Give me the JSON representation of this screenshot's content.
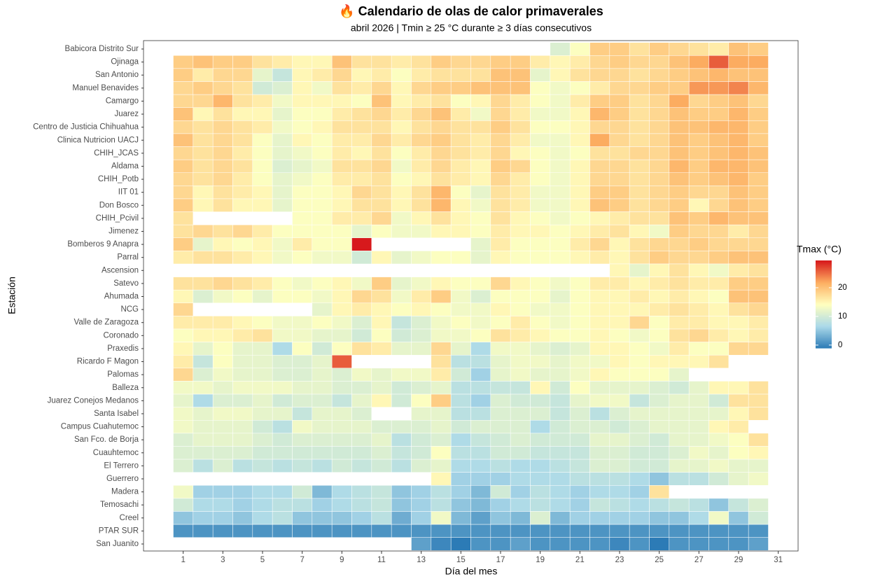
{
  "chart_data": {
    "type": "heatmap",
    "title": "🔥 Calendario de olas de calor primaverales",
    "subtitle": "abril 2026 | Tmin ≥ 25 °C durante ≥ 3 días consecutivos",
    "xlabel": "Día del mes",
    "ylabel": "Estación",
    "x": [
      1,
      2,
      3,
      4,
      5,
      6,
      7,
      8,
      9,
      10,
      11,
      12,
      13,
      14,
      15,
      16,
      17,
      18,
      19,
      20,
      21,
      22,
      23,
      24,
      25,
      26,
      27,
      28,
      29,
      30
    ],
    "xlim": [
      -1,
      32
    ],
    "xticks": [
      1,
      3,
      5,
      7,
      9,
      11,
      13,
      15,
      17,
      19,
      21,
      23,
      25,
      27,
      29,
      31
    ],
    "categories": [
      "Babicora Distrito Sur",
      "Ojinaga",
      "San Antonio",
      "Manuel Benavides",
      "Camargo",
      "Juarez",
      "Centro de Justicia Chihuahua",
      "Clinica Nutricion UACJ",
      "CHIH_JCAS",
      "Aldama",
      "CHIH_Potb",
      "IIT 01",
      "Don Bosco",
      "CHIH_Pcivil",
      "Jimenez",
      "Bomberos 9 Anapra",
      "Parral",
      "Ascension",
      "Satevo",
      "Ahumada",
      "NCG",
      "Valle de Zaragoza",
      "Coronado",
      "Praxedis",
      "Ricardo F Magon",
      "Palomas",
      "Balleza",
      "Juarez Conejos Medanos",
      "Santa Isabel",
      "Campus Cuahutemoc",
      "San Fco. de Borja",
      "Cuauhtemoc",
      "El Terrero",
      "Guerrero",
      "Madera",
      "Temosachi",
      "Creel",
      "PTAR SUR",
      "San Juanito"
    ],
    "values": [
      [
        null,
        null,
        null,
        null,
        null,
        null,
        null,
        null,
        null,
        null,
        null,
        null,
        null,
        null,
        null,
        null,
        null,
        null,
        null,
        11,
        14,
        19,
        19,
        17,
        19,
        18,
        17,
        16,
        20,
        19
      ],
      [
        19,
        20,
        19,
        19,
        17,
        16,
        15,
        15,
        20,
        17,
        17,
        16,
        17,
        19,
        18,
        18,
        19,
        19,
        16,
        15,
        16,
        18,
        19,
        18,
        18,
        20,
        22,
        26,
        22,
        22
      ],
      [
        19,
        16,
        18,
        18,
        12,
        9,
        15,
        16,
        18,
        15,
        16,
        14,
        16,
        17,
        17,
        17,
        20,
        20,
        12,
        15,
        17,
        18,
        18,
        17,
        18,
        19,
        20,
        21,
        20,
        20
      ],
      [
        18,
        19,
        18,
        17,
        10,
        11,
        15,
        13,
        17,
        16,
        18,
        15,
        18,
        19,
        19,
        20,
        20,
        20,
        14,
        13,
        14,
        16,
        18,
        18,
        19,
        19,
        23,
        23,
        24,
        21
      ],
      [
        18,
        18,
        21,
        17,
        16,
        13,
        15,
        15,
        15,
        14,
        20,
        15,
        16,
        17,
        14,
        15,
        18,
        16,
        14,
        13,
        16,
        19,
        19,
        17,
        18,
        22,
        18,
        19,
        20,
        18
      ],
      [
        20,
        15,
        17,
        15,
        15,
        12,
        14,
        14,
        16,
        17,
        18,
        16,
        18,
        20,
        16,
        13,
        18,
        16,
        13,
        13,
        15,
        21,
        19,
        17,
        18,
        20,
        19,
        19,
        21,
        19
      ],
      [
        18,
        17,
        18,
        17,
        16,
        13,
        14,
        15,
        17,
        17,
        17,
        15,
        17,
        18,
        17,
        17,
        19,
        17,
        14,
        14,
        15,
        18,
        18,
        17,
        18,
        20,
        20,
        21,
        21,
        19
      ],
      [
        20,
        17,
        18,
        17,
        14,
        12,
        15,
        14,
        16,
        16,
        18,
        16,
        18,
        19,
        17,
        16,
        18,
        16,
        13,
        13,
        15,
        22,
        18,
        17,
        18,
        20,
        19,
        20,
        21,
        19
      ],
      [
        18,
        17,
        18,
        16,
        14,
        12,
        13,
        14,
        16,
        15,
        17,
        14,
        16,
        18,
        17,
        16,
        18,
        15,
        14,
        13,
        14,
        17,
        17,
        18,
        18,
        20,
        19,
        20,
        21,
        20
      ],
      [
        19,
        17,
        18,
        17,
        14,
        11,
        12,
        13,
        17,
        17,
        18,
        13,
        16,
        18,
        16,
        15,
        19,
        18,
        14,
        13,
        15,
        18,
        18,
        17,
        18,
        21,
        19,
        21,
        21,
        20
      ],
      [
        18,
        17,
        18,
        16,
        14,
        12,
        13,
        14,
        16,
        16,
        17,
        14,
        15,
        17,
        16,
        15,
        18,
        16,
        14,
        13,
        15,
        18,
        18,
        17,
        18,
        20,
        19,
        20,
        21,
        19
      ],
      [
        18,
        15,
        17,
        16,
        15,
        12,
        14,
        14,
        15,
        18,
        17,
        15,
        17,
        21,
        14,
        12,
        17,
        16,
        13,
        13,
        15,
        19,
        19,
        17,
        18,
        19,
        18,
        18,
        20,
        19
      ],
      [
        19,
        15,
        17,
        15,
        15,
        12,
        14,
        14,
        15,
        17,
        17,
        15,
        17,
        21,
        15,
        13,
        17,
        16,
        13,
        13,
        15,
        20,
        19,
        17,
        18,
        19,
        15,
        18,
        20,
        19
      ],
      [
        17,
        null,
        null,
        null,
        null,
        null,
        14,
        14,
        16,
        16,
        18,
        13,
        15,
        17,
        15,
        14,
        17,
        15,
        14,
        13,
        14,
        15,
        16,
        17,
        17,
        20,
        19,
        21,
        20,
        20
      ],
      [
        17,
        18,
        17,
        18,
        16,
        14,
        14,
        14,
        14,
        12,
        14,
        13,
        13,
        15,
        15,
        14,
        16,
        15,
        15,
        14,
        15,
        16,
        17,
        15,
        13,
        19,
        18,
        18,
        16,
        18
      ],
      [
        19,
        12,
        15,
        14,
        15,
        13,
        16,
        14,
        14,
        29.5,
        null,
        null,
        null,
        null,
        null,
        12,
        16,
        14,
        14,
        14,
        16,
        18,
        15,
        17,
        18,
        18,
        19,
        18,
        18,
        18
      ],
      [
        16,
        17,
        17,
        16,
        15,
        13,
        14,
        13,
        13,
        10,
        15,
        12,
        13,
        14,
        14,
        12,
        15,
        14,
        14,
        14,
        15,
        16,
        15,
        17,
        19,
        18,
        18,
        19,
        20,
        20
      ],
      [
        null,
        null,
        null,
        null,
        null,
        null,
        null,
        null,
        null,
        null,
        null,
        null,
        null,
        null,
        null,
        null,
        null,
        null,
        null,
        null,
        null,
        null,
        15,
        12,
        15,
        17,
        15,
        13,
        16,
        17
      ],
      [
        17,
        17,
        18,
        17,
        16,
        14,
        13,
        14,
        15,
        13,
        19,
        12,
        13,
        15,
        14,
        14,
        18,
        15,
        14,
        13,
        14,
        16,
        16,
        15,
        16,
        17,
        16,
        16,
        19,
        19
      ],
      [
        15,
        11,
        13,
        14,
        12,
        14,
        14,
        13,
        15,
        18,
        17,
        13,
        16,
        19,
        13,
        11,
        14,
        14,
        14,
        12,
        14,
        15,
        15,
        16,
        15,
        16,
        15,
        14,
        20,
        20
      ],
      [
        18,
        null,
        null,
        null,
        null,
        null,
        null,
        12,
        15,
        16,
        15,
        14,
        15,
        14,
        13,
        13,
        15,
        14,
        13,
        13,
        14,
        15,
        15,
        15,
        16,
        17,
        16,
        15,
        17,
        18
      ],
      [
        16,
        16,
        16,
        15,
        14,
        13,
        13,
        14,
        13,
        11,
        15,
        9,
        11,
        13,
        14,
        13,
        14,
        16,
        14,
        13,
        14,
        15,
        15,
        18,
        14,
        16,
        16,
        15,
        15,
        16
      ],
      [
        14,
        15,
        15,
        16,
        17,
        13,
        13,
        12,
        12,
        10,
        14,
        10,
        11,
        13,
        13,
        14,
        17,
        16,
        15,
        14,
        14,
        15,
        14,
        13,
        14,
        17,
        18,
        16,
        15,
        16
      ],
      [
        15,
        12,
        14,
        12,
        12,
        7,
        14,
        10,
        14,
        17,
        16,
        12,
        12,
        18,
        12,
        7,
        13,
        13,
        12,
        11,
        12,
        15,
        15,
        14,
        13,
        16,
        14,
        14,
        18,
        18
      ],
      [
        16,
        9,
        14,
        12,
        12,
        11,
        11,
        12,
        26,
        null,
        null,
        null,
        null,
        17,
        8,
        8,
        12,
        13,
        13,
        12,
        13,
        13,
        15,
        14,
        15,
        15,
        15,
        17,
        null,
        null
      ],
      [
        18,
        11,
        13,
        12,
        12,
        11,
        11,
        12,
        11,
        13,
        12,
        13,
        13,
        16,
        10,
        6,
        12,
        13,
        12,
        12,
        13,
        15,
        14,
        14,
        14,
        12,
        null,
        null,
        null,
        null
      ],
      [
        13,
        13,
        12,
        13,
        13,
        13,
        12,
        12,
        11,
        11,
        12,
        10,
        11,
        12,
        8,
        8,
        9,
        9,
        15,
        10,
        14,
        12,
        12,
        12,
        11,
        10,
        12,
        15,
        15,
        17
      ],
      [
        12,
        7,
        11,
        11,
        12,
        10,
        11,
        11,
        9,
        12,
        15,
        10,
        14,
        19,
        8,
        6,
        11,
        10,
        10,
        9,
        12,
        13,
        13,
        9,
        11,
        12,
        12,
        10,
        17,
        17
      ],
      [
        13,
        12,
        13,
        13,
        12,
        12,
        9,
        12,
        12,
        11,
        null,
        null,
        12,
        12,
        8,
        8,
        11,
        11,
        11,
        9,
        11,
        8,
        11,
        12,
        12,
        12,
        12,
        12,
        15,
        17
      ],
      [
        13,
        12,
        12,
        12,
        10,
        8,
        13,
        12,
        12,
        12,
        11,
        11,
        11,
        12,
        10,
        11,
        11,
        11,
        7,
        10,
        11,
        11,
        10,
        11,
        12,
        12,
        12,
        15,
        16,
        null
      ],
      [
        11,
        12,
        12,
        12,
        11,
        10,
        11,
        11,
        11,
        11,
        12,
        8,
        10,
        11,
        7,
        9,
        10,
        11,
        10,
        10,
        10,
        12,
        12,
        11,
        10,
        12,
        12,
        13,
        14,
        17
      ],
      [
        11,
        11,
        11,
        11,
        10,
        10,
        10,
        10,
        10,
        10,
        11,
        9,
        10,
        14,
        8,
        8,
        10,
        10,
        9,
        9,
        9,
        11,
        11,
        10,
        10,
        11,
        13,
        12,
        14,
        15
      ],
      [
        11,
        8,
        11,
        8,
        9,
        8,
        9,
        8,
        10,
        9,
        10,
        8,
        11,
        12,
        7,
        7,
        8,
        7,
        7,
        8,
        9,
        11,
        11,
        10,
        10,
        12,
        12,
        13,
        12,
        12
      ],
      [
        null,
        null,
        null,
        null,
        null,
        null,
        null,
        null,
        null,
        null,
        null,
        null,
        null,
        15,
        6,
        6,
        6,
        7,
        7,
        7,
        8,
        8,
        8,
        7,
        5,
        8,
        8,
        10,
        12,
        13
      ],
      [
        13,
        6,
        6,
        6,
        7,
        7,
        10,
        4,
        7,
        8,
        9,
        5,
        6,
        8,
        6,
        4,
        10,
        6,
        8,
        7,
        6,
        7,
        7,
        6,
        17,
        null,
        null,
        null,
        null,
        null
      ],
      [
        10,
        7,
        7,
        6,
        7,
        8,
        8,
        6,
        7,
        8,
        9,
        5,
        6,
        8,
        5,
        4,
        6,
        7,
        8,
        7,
        6,
        9,
        8,
        7,
        8,
        9,
        8,
        5,
        9,
        11
      ],
      [
        5,
        6,
        6,
        5,
        7,
        8,
        5,
        5,
        5,
        6,
        8,
        3,
        6,
        13,
        4,
        2,
        5,
        4,
        11,
        4,
        6,
        6,
        6,
        6,
        5,
        5,
        7,
        13,
        5,
        10
      ],
      [
        1,
        1,
        1,
        1,
        1,
        1,
        1,
        1,
        1,
        1,
        1,
        1,
        1,
        1,
        1,
        1,
        1,
        1,
        1,
        1,
        1,
        1,
        1,
        1,
        1,
        1,
        1,
        1,
        1,
        1
      ],
      [
        null,
        null,
        null,
        null,
        null,
        null,
        null,
        null,
        null,
        null,
        null,
        null,
        2,
        0,
        -1,
        1,
        1,
        2,
        1,
        1,
        1,
        1,
        0,
        1,
        -1,
        1,
        1,
        1,
        1,
        2
      ]
    ],
    "colorscale": [
      "#2c7bb6",
      "#abd9e9",
      "#ffffbf",
      "#fdae61",
      "#d7191c"
    ],
    "colorbar": {
      "title": "Tmax (°C)",
      "lim": [
        -1,
        29.5
      ],
      "ticks": [
        0,
        10,
        20
      ]
    }
  }
}
